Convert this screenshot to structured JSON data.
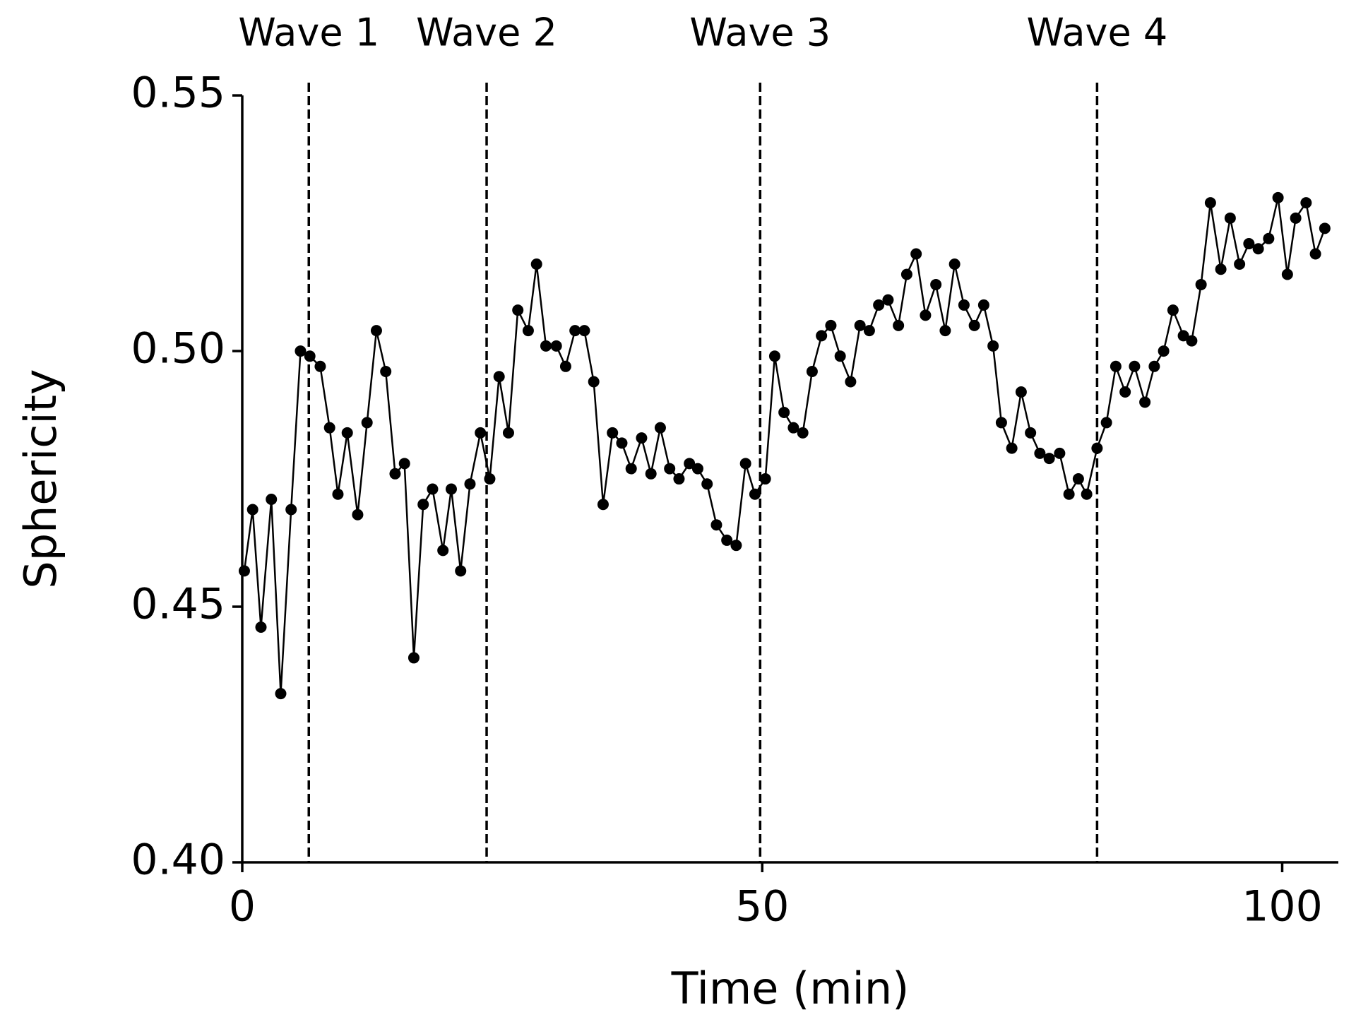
{
  "chart_data": {
    "type": "line",
    "xlabel": "Time (min)",
    "ylabel": "Sphericity",
    "color": "#000000",
    "xlim": [
      0,
      105.4
    ],
    "ylim": [
      0.4,
      0.5525
    ],
    "xticks": [
      0,
      50,
      100
    ],
    "yticks": [
      {
        "value": 0.4,
        "label": "0.40"
      },
      0.45,
      {
        "value": 0.5,
        "label": "0.50"
      },
      0.55
    ],
    "vlines": [
      {
        "x": 6.4,
        "label": "Wave 1"
      },
      {
        "x": 23.5,
        "label": "Wave 2"
      },
      {
        "x": 49.8,
        "label": "Wave 3"
      },
      {
        "x": 82.2,
        "label": "Wave 4"
      }
    ],
    "x": [
      0.2,
      1.0,
      1.8,
      2.8,
      3.7,
      4.7,
      5.6,
      6.5,
      7.5,
      8.4,
      9.2,
      10.1,
      11.1,
      12.0,
      12.9,
      13.8,
      14.7,
      15.6,
      16.5,
      17.4,
      18.3,
      19.3,
      20.1,
      21.0,
      21.9,
      22.9,
      23.8,
      24.7,
      25.6,
      26.5,
      27.5,
      28.3,
      29.2,
      30.2,
      31.1,
      32.0,
      32.9,
      33.8,
      34.7,
      35.6,
      36.5,
      37.4,
      38.4,
      39.3,
      40.2,
      41.1,
      42.0,
      43.0,
      43.8,
      44.7,
      45.6,
      46.6,
      47.5,
      48.4,
      49.3,
      50.3,
      51.2,
      52.1,
      53.0,
      53.9,
      54.8,
      55.7,
      56.6,
      57.5,
      58.5,
      59.4,
      60.3,
      61.2,
      62.1,
      63.1,
      63.9,
      64.8,
      65.7,
      66.7,
      67.6,
      68.5,
      69.4,
      70.4,
      71.3,
      72.2,
      73.0,
      74.0,
      74.9,
      75.8,
      76.7,
      77.6,
      78.6,
      79.5,
      80.4,
      81.2,
      82.2,
      83.1,
      84.0,
      84.9,
      85.8,
      86.8,
      87.7,
      88.6,
      89.5,
      90.5,
      91.3,
      92.2,
      93.1,
      94.1,
      95.0,
      95.9,
      96.8,
      97.7,
      98.7,
      99.6,
      100.5,
      101.3,
      102.3,
      103.2,
      104.1
    ],
    "values": [
      0.457,
      0.469,
      0.446,
      0.471,
      0.433,
      0.469,
      0.5,
      0.499,
      0.497,
      0.485,
      0.472,
      0.484,
      0.468,
      0.486,
      0.504,
      0.496,
      0.476,
      0.478,
      0.44,
      0.47,
      0.473,
      0.461,
      0.473,
      0.457,
      0.474,
      0.484,
      0.475,
      0.495,
      0.484,
      0.508,
      0.504,
      0.517,
      0.501,
      0.501,
      0.497,
      0.504,
      0.504,
      0.494,
      0.47,
      0.484,
      0.482,
      0.477,
      0.483,
      0.476,
      0.485,
      0.477,
      0.475,
      0.478,
      0.477,
      0.474,
      0.466,
      0.463,
      0.462,
      0.478,
      0.472,
      0.475,
      0.499,
      0.488,
      0.485,
      0.484,
      0.496,
      0.503,
      0.505,
      0.499,
      0.494,
      0.505,
      0.504,
      0.509,
      0.51,
      0.505,
      0.515,
      0.519,
      0.507,
      0.513,
      0.504,
      0.517,
      0.509,
      0.505,
      0.509,
      0.501,
      0.486,
      0.481,
      0.492,
      0.484,
      0.48,
      0.479,
      0.48,
      0.472,
      0.475,
      0.472,
      0.481,
      0.486,
      0.497,
      0.492,
      0.497,
      0.49,
      0.497,
      0.5,
      0.508,
      0.503,
      0.502,
      0.513,
      0.529,
      0.516,
      0.526,
      0.517,
      0.521,
      0.52,
      0.522,
      0.53,
      0.515,
      0.526,
      0.529,
      0.519,
      0.524
    ]
  }
}
